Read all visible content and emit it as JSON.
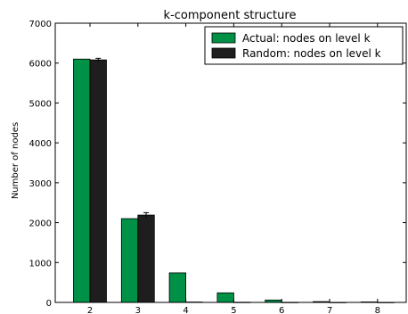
{
  "chart_data": {
    "type": "bar",
    "title": "k-component structure",
    "xlabel": "",
    "ylabel": "Number of nodes",
    "categories": [
      "2",
      "3",
      "4",
      "5",
      "6",
      "7",
      "8"
    ],
    "ylim": [
      0,
      7000
    ],
    "yticks": [
      0,
      1000,
      2000,
      3000,
      4000,
      5000,
      6000,
      7000
    ],
    "grid": false,
    "legend_position": "top-right",
    "series": [
      {
        "name": "Actual: nodes on level k",
        "color": "#009147",
        "values": [
          6100,
          2100,
          740,
          240,
          60,
          20,
          12
        ]
      },
      {
        "name": "Random: nodes on level k",
        "color": "#1e1e1e",
        "values": [
          6080,
          2190,
          10,
          5,
          3,
          2,
          2
        ],
        "error": [
          40,
          60,
          0,
          0,
          0,
          0,
          0
        ]
      }
    ]
  }
}
